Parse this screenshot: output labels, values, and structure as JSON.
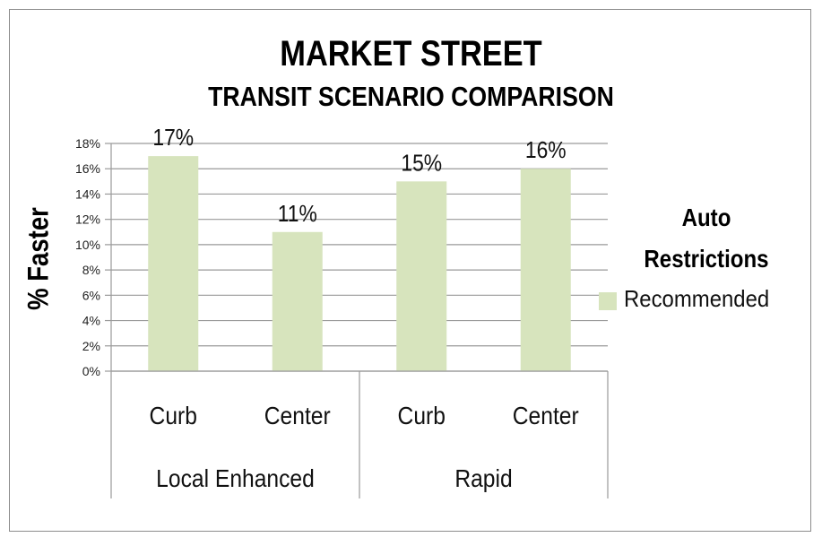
{
  "chart_data": {
    "type": "bar",
    "title": "MARKET STREET",
    "subtitle": "TRANSIT SCENARIO COMPARISON",
    "ylabel": "% Faster",
    "xlabel": "",
    "ylim": [
      0,
      18
    ],
    "yticks": [
      "0%",
      "2%",
      "4%",
      "6%",
      "8%",
      "10%",
      "12%",
      "14%",
      "16%",
      "18%"
    ],
    "ytick_values": [
      0,
      2,
      4,
      6,
      8,
      10,
      12,
      14,
      16,
      18
    ],
    "grid": true,
    "categories": [
      "Curb",
      "Center",
      "Curb",
      "Center"
    ],
    "groups": [
      {
        "label": "Local Enhanced",
        "span": 2
      },
      {
        "label": "Rapid",
        "span": 2
      }
    ],
    "series": [
      {
        "name": "Recommended",
        "values": [
          17,
          11,
          15,
          16
        ],
        "color": "#d7e4bd"
      }
    ],
    "data_labels": [
      "17%",
      "11%",
      "15%",
      "16%"
    ],
    "legend_title": "Auto Restrictions",
    "legend_title_lines": [
      "Auto",
      "Restrictions"
    ],
    "legend_position": "right"
  }
}
